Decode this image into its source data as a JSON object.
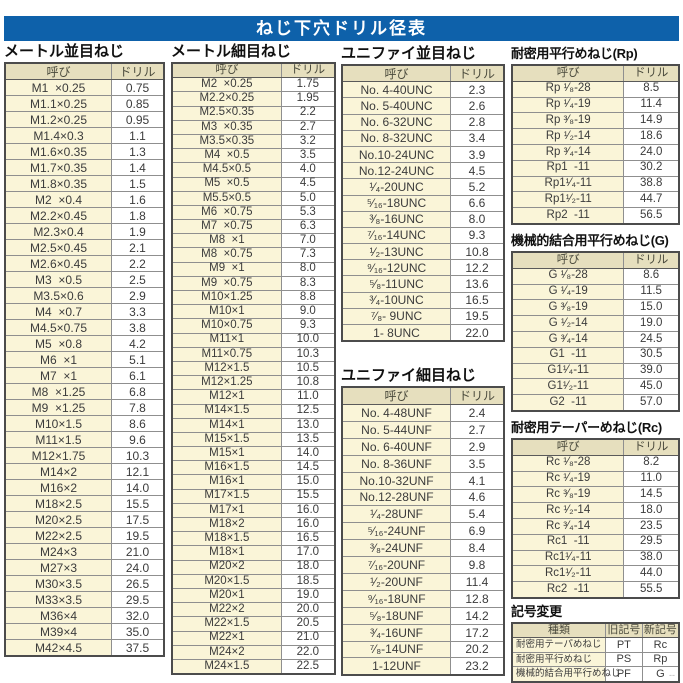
{
  "title": "ねじ下穴ドリル径表",
  "corner_mark": "--",
  "colors": {
    "title_bg": "#0e61aa",
    "header_bg": "#e6dfbe",
    "name_bg": "#faf5d8",
    "drill_bg": "#ffffff"
  },
  "tables": {
    "metric_coarse": {
      "heading": "メートル並目ねじ",
      "col_name": "呼び",
      "col_drill": "ドリル",
      "rows": [
        [
          "M1  ×0.25",
          "0.75"
        ],
        [
          "M1.1×0.25",
          "0.85"
        ],
        [
          "M1.2×0.25",
          "0.95"
        ],
        [
          "M1.4×0.3",
          "1.1"
        ],
        [
          "M1.6×0.35",
          "1.3"
        ],
        [
          "M1.7×0.35",
          "1.4"
        ],
        [
          "M1.8×0.35",
          "1.5"
        ],
        [
          "M2  ×0.4",
          "1.6"
        ],
        [
          "M2.2×0.45",
          "1.8"
        ],
        [
          "M2.3×0.4",
          "1.9"
        ],
        [
          "M2.5×0.45",
          "2.1"
        ],
        [
          "M2.6×0.45",
          "2.2"
        ],
        [
          "M3  ×0.5",
          "2.5"
        ],
        [
          "M3.5×0.6",
          "2.9"
        ],
        [
          "M4  ×0.7",
          "3.3"
        ],
        [
          "M4.5×0.75",
          "3.8"
        ],
        [
          "M5  ×0.8",
          "4.2"
        ],
        [
          "M6  ×1",
          "5.1"
        ],
        [
          "M7  ×1",
          "6.1"
        ],
        [
          "M8  ×1.25",
          "6.8"
        ],
        [
          "M9  ×1.25",
          "7.8"
        ],
        [
          "M10×1.5",
          "8.6"
        ],
        [
          "M11×1.5",
          "9.6"
        ],
        [
          "M12×1.75",
          "10.3"
        ],
        [
          "M14×2",
          "12.1"
        ],
        [
          "M16×2",
          "14.0"
        ],
        [
          "M18×2.5",
          "15.5"
        ],
        [
          "M20×2.5",
          "17.5"
        ],
        [
          "M22×2.5",
          "19.5"
        ],
        [
          "M24×3",
          "21.0"
        ],
        [
          "M27×3",
          "24.0"
        ],
        [
          "M30×3.5",
          "26.5"
        ],
        [
          "M33×3.5",
          "29.5"
        ],
        [
          "M36×4",
          "32.0"
        ],
        [
          "M39×4",
          "35.0"
        ],
        [
          "M42×4.5",
          "37.5"
        ]
      ]
    },
    "metric_fine": {
      "heading": "メートル細目ねじ",
      "col_name": "呼び",
      "col_drill": "ドリル",
      "rows": [
        [
          "M2  ×0.25",
          "1.75"
        ],
        [
          "M2.2×0.25",
          "1.95"
        ],
        [
          "M2.5×0.35",
          "2.2"
        ],
        [
          "M3  ×0.35",
          "2.7"
        ],
        [
          "M3.5×0.35",
          "3.2"
        ],
        [
          "M4  ×0.5",
          "3.5"
        ],
        [
          "M4.5×0.5",
          "4.0"
        ],
        [
          "M5  ×0.5",
          "4.5"
        ],
        [
          "M5.5×0.5",
          "5.0"
        ],
        [
          "M6  ×0.75",
          "5.3"
        ],
        [
          "M7  ×0.75",
          "6.3"
        ],
        [
          "M8  ×1",
          "7.0"
        ],
        [
          "M8  ×0.75",
          "7.3"
        ],
        [
          "M9  ×1",
          "8.0"
        ],
        [
          "M9  ×0.75",
          "8.3"
        ],
        [
          "M10×1.25",
          "8.8"
        ],
        [
          "M10×1",
          "9.0"
        ],
        [
          "M10×0.75",
          "9.3"
        ],
        [
          "M11×1",
          "10.0"
        ],
        [
          "M11×0.75",
          "10.3"
        ],
        [
          "M12×1.5",
          "10.5"
        ],
        [
          "M12×1.25",
          "10.8"
        ],
        [
          "M12×1",
          "11.0"
        ],
        [
          "M14×1.5",
          "12.5"
        ],
        [
          "M14×1",
          "13.0"
        ],
        [
          "M15×1.5",
          "13.5"
        ],
        [
          "M15×1",
          "14.0"
        ],
        [
          "M16×1.5",
          "14.5"
        ],
        [
          "M16×1",
          "15.0"
        ],
        [
          "M17×1.5",
          "15.5"
        ],
        [
          "M17×1",
          "16.0"
        ],
        [
          "M18×2",
          "16.0"
        ],
        [
          "M18×1.5",
          "16.5"
        ],
        [
          "M18×1",
          "17.0"
        ],
        [
          "M20×2",
          "18.0"
        ],
        [
          "M20×1.5",
          "18.5"
        ],
        [
          "M20×1",
          "19.0"
        ],
        [
          "M22×2",
          "20.0"
        ],
        [
          "M22×1.5",
          "20.5"
        ],
        [
          "M22×1",
          "21.0"
        ],
        [
          "M24×2",
          "22.0"
        ],
        [
          "M24×1.5",
          "22.5"
        ]
      ]
    },
    "unified_coarse": {
      "heading": "ユニファイ並目ねじ",
      "col_name": "呼び",
      "col_drill": "ドリル",
      "rows": [
        [
          "No. 4-40UNC",
          "2.3"
        ],
        [
          "No. 5-40UNC",
          "2.6"
        ],
        [
          "No. 6-32UNC",
          "2.8"
        ],
        [
          "No. 8-32UNC",
          "3.4"
        ],
        [
          "No.10-24UNC",
          "3.9"
        ],
        [
          "No.12-24UNC",
          "4.5"
        ],
        [
          "¹⁄₄-20UNC",
          "5.2"
        ],
        [
          "⁵⁄₁₆-18UNC",
          "6.6"
        ],
        [
          "³⁄₈-16UNC",
          "8.0"
        ],
        [
          "⁷⁄₁₆-14UNC",
          "9.3"
        ],
        [
          "¹⁄₂-13UNC",
          "10.8"
        ],
        [
          "⁹⁄₁₆-12UNC",
          "12.2"
        ],
        [
          "⁵⁄₈-11UNC",
          "13.6"
        ],
        [
          "³⁄₄-10UNC",
          "16.5"
        ],
        [
          "⁷⁄₈- 9UNC",
          "19.5"
        ],
        [
          "1- 8UNC",
          "22.0"
        ]
      ]
    },
    "unified_fine": {
      "heading": "ユニファイ細目ねじ",
      "col_name": "呼び",
      "col_drill": "ドリル",
      "rows": [
        [
          "No. 4-48UNF",
          "2.4"
        ],
        [
          "No. 5-44UNF",
          "2.7"
        ],
        [
          "No. 6-40UNF",
          "2.9"
        ],
        [
          "No. 8-36UNF",
          "3.5"
        ],
        [
          "No.10-32UNF",
          "4.1"
        ],
        [
          "No.12-28UNF",
          "4.6"
        ],
        [
          "¹⁄₄-28UNF",
          "5.4"
        ],
        [
          "⁵⁄₁₆-24UNF",
          "6.9"
        ],
        [
          "³⁄₈-24UNF",
          "8.4"
        ],
        [
          "⁷⁄₁₆-20UNF",
          "9.8"
        ],
        [
          "¹⁄₂-20UNF",
          "11.4"
        ],
        [
          "⁹⁄₁₆-18UNF",
          "12.8"
        ],
        [
          "⁵⁄₈-18UNF",
          "14.2"
        ],
        [
          "³⁄₄-16UNF",
          "17.2"
        ],
        [
          "⁷⁄₈-14UNF",
          "20.2"
        ],
        [
          "1-12UNF",
          "23.2"
        ]
      ]
    },
    "rp": {
      "heading": "耐密用平行めねじ(Rp)",
      "col_name": "呼び",
      "col_drill": "ドリル",
      "rows": [
        [
          "Rp ¹⁄₈-28",
          "8.5"
        ],
        [
          "Rp ¹⁄₄-19",
          "11.4"
        ],
        [
          "Rp ³⁄₈-19",
          "14.9"
        ],
        [
          "Rp ¹⁄₂-14",
          "18.6"
        ],
        [
          "Rp ³⁄₄-14",
          "24.0"
        ],
        [
          "Rp1  -11",
          "30.2"
        ],
        [
          "Rp1¹⁄₄-11",
          "38.8"
        ],
        [
          "Rp1¹⁄₂-11",
          "44.7"
        ],
        [
          "Rp2  -11",
          "56.5"
        ]
      ]
    },
    "g": {
      "heading": "機械的結合用平行めねじ(G)",
      "col_name": "呼び",
      "col_drill": "ドリル",
      "rows": [
        [
          "G ¹⁄₈-28",
          "8.6"
        ],
        [
          "G ¹⁄₄-19",
          "11.5"
        ],
        [
          "G ³⁄₈-19",
          "15.0"
        ],
        [
          "G ¹⁄₂-14",
          "19.0"
        ],
        [
          "G ³⁄₄-14",
          "24.5"
        ],
        [
          "G1  -11",
          "30.5"
        ],
        [
          "G1¹⁄₄-11",
          "39.0"
        ],
        [
          "G1¹⁄₂-11",
          "45.0"
        ],
        [
          "G2  -11",
          "57.0"
        ]
      ]
    },
    "rc": {
      "heading": "耐密用テーパーめねじ(Rc)",
      "col_name": "呼び",
      "col_drill": "ドリル",
      "rows": [
        [
          "Rc ¹⁄₈-28",
          "8.2"
        ],
        [
          "Rc ¹⁄₄-19",
          "11.0"
        ],
        [
          "Rc ³⁄₈-19",
          "14.5"
        ],
        [
          "Rc ¹⁄₂-14",
          "18.0"
        ],
        [
          "Rc ³⁄₄-14",
          "23.5"
        ],
        [
          "Rc1  -11",
          "29.5"
        ],
        [
          "Rc1¹⁄₄-11",
          "38.0"
        ],
        [
          "Rc1¹⁄₂-11",
          "44.0"
        ],
        [
          "Rc2  -11",
          "55.5"
        ]
      ]
    },
    "symbol_change": {
      "heading": "記号変更",
      "headers": [
        "種類",
        "旧記号",
        "新記号"
      ],
      "rows": [
        [
          "耐密用テーパめねじ",
          "PT",
          "Rc"
        ],
        [
          "耐密用平行めねじ",
          "PS",
          "Rp"
        ],
        [
          "機械的結合用平行めねじ",
          "PF",
          "G"
        ]
      ]
    }
  }
}
